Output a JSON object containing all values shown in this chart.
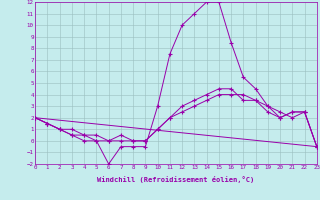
{
  "xlabel": "Windchill (Refroidissement éolien,°C)",
  "xlim": [
    0,
    23
  ],
  "ylim": [
    -2,
    12
  ],
  "yticks": [
    -2,
    -1,
    0,
    1,
    2,
    3,
    4,
    5,
    6,
    7,
    8,
    9,
    10,
    11,
    12
  ],
  "xticks": [
    0,
    1,
    2,
    3,
    4,
    5,
    6,
    7,
    8,
    9,
    10,
    11,
    12,
    13,
    14,
    15,
    16,
    17,
    18,
    19,
    20,
    21,
    22,
    23
  ],
  "background_color": "#c5eced",
  "grid_color": "#9abfc0",
  "line_color": "#9900aa",
  "line1_x": [
    0,
    1,
    2,
    3,
    4,
    5,
    6,
    7,
    8,
    9,
    10,
    11,
    12,
    13,
    14,
    15,
    16,
    17,
    18,
    19,
    20,
    21,
    22,
    23
  ],
  "line1_y": [
    2.0,
    1.5,
    1.0,
    0.5,
    0.0,
    0.0,
    -2.0,
    -0.5,
    -0.5,
    -0.5,
    3.0,
    7.5,
    10.0,
    11.0,
    12.0,
    12.0,
    8.5,
    5.5,
    4.5,
    3.0,
    2.0,
    2.5,
    2.5,
    -0.5
  ],
  "line2_x": [
    0,
    1,
    2,
    3,
    4,
    5,
    6,
    7,
    8,
    9,
    10,
    11,
    12,
    13,
    14,
    15,
    16,
    17,
    18,
    19,
    20,
    21,
    22,
    23
  ],
  "line2_y": [
    2.0,
    1.5,
    1.0,
    0.5,
    0.5,
    0.0,
    0.0,
    0.0,
    0.0,
    0.0,
    1.0,
    2.0,
    2.5,
    3.0,
    3.5,
    4.0,
    4.0,
    4.0,
    3.5,
    3.0,
    2.5,
    2.0,
    2.5,
    -0.5
  ],
  "line3_x": [
    0,
    1,
    2,
    3,
    4,
    5,
    6,
    7,
    8,
    9,
    10,
    11,
    12,
    13,
    14,
    15,
    16,
    17,
    18,
    19,
    20,
    21,
    22,
    23
  ],
  "line3_y": [
    2.0,
    1.5,
    1.0,
    1.0,
    0.5,
    0.5,
    0.0,
    0.5,
    0.0,
    0.0,
    1.0,
    2.0,
    3.0,
    3.5,
    4.0,
    4.5,
    4.5,
    3.5,
    3.5,
    2.5,
    2.0,
    2.5,
    2.5,
    -0.5
  ],
  "line4_x": [
    0,
    23
  ],
  "line4_y": [
    2.0,
    -0.5
  ]
}
